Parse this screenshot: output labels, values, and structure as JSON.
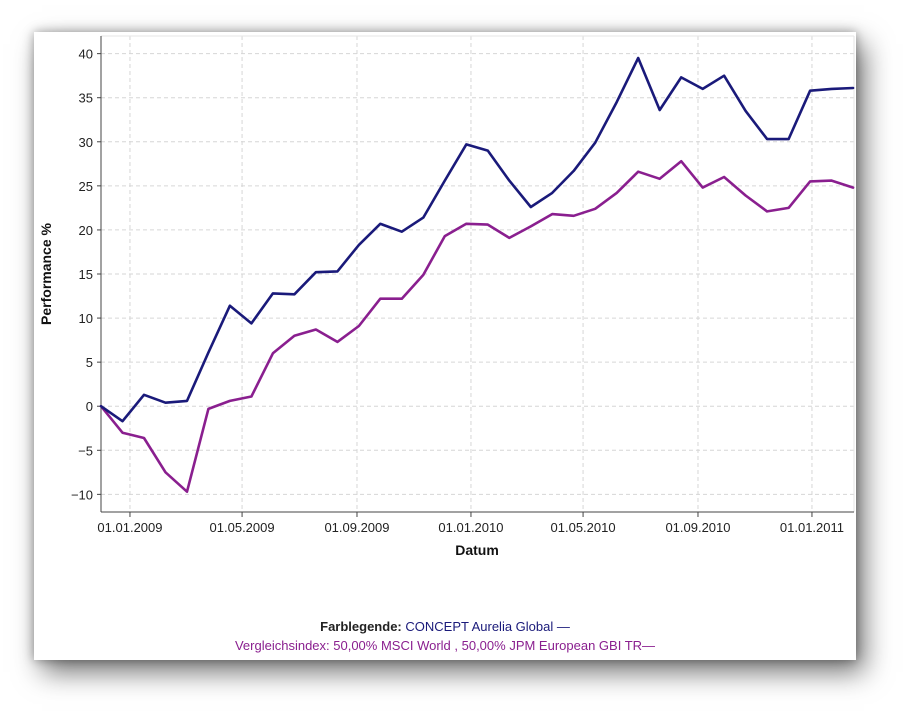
{
  "legend": {
    "title": "Farblegende:",
    "series1_text": "CONCEPT Aurelia Global —",
    "series2_text": "Vergleichsindex: 50,00% MSCI World , 50,00% JPM European GBI TR—"
  },
  "chart_data": {
    "type": "line",
    "xlabel": "Datum",
    "ylabel": "Performance %",
    "ylim": [
      -12,
      42
    ],
    "yticks": [
      -10,
      -5,
      0,
      5,
      10,
      15,
      20,
      25,
      30,
      35,
      40
    ],
    "xlim": [
      "2008-12-01",
      "2011-02-15"
    ],
    "xticks": [
      {
        "date": "2009-01-01",
        "label": "01.01.2009"
      },
      {
        "date": "2009-05-01",
        "label": "01.05.2009"
      },
      {
        "date": "2009-09-01",
        "label": "01.09.2009"
      },
      {
        "date": "2010-01-01",
        "label": "01.01.2010"
      },
      {
        "date": "2010-05-01",
        "label": "01.05.2010"
      },
      {
        "date": "2010-09-01",
        "label": "01.09.2010"
      },
      {
        "date": "2011-01-01",
        "label": "01.01.2011"
      }
    ],
    "grid": true,
    "legend_position": "bottom",
    "x": [
      "2008-12-01",
      "2008-12-24",
      "2009-01-16",
      "2009-02-08",
      "2009-03-03",
      "2009-03-26",
      "2009-04-18",
      "2009-05-11",
      "2009-06-03",
      "2009-06-26",
      "2009-07-19",
      "2009-08-11",
      "2009-09-03",
      "2009-09-26",
      "2009-10-19",
      "2009-11-11",
      "2009-12-04",
      "2009-12-27",
      "2010-01-19",
      "2010-02-11",
      "2010-03-06",
      "2010-03-29",
      "2010-04-21",
      "2010-05-14",
      "2010-06-06",
      "2010-06-29",
      "2010-07-22",
      "2010-08-14",
      "2010-09-06",
      "2010-09-29",
      "2010-10-22",
      "2010-11-14",
      "2010-12-07",
      "2010-12-30",
      "2011-01-22",
      "2011-02-14"
    ],
    "series": [
      {
        "name": "CONCEPT Aurelia Global",
        "color": "#1a1a7a",
        "values": [
          0,
          -1.7,
          1.3,
          0.4,
          0.6,
          6.1,
          11.4,
          9.4,
          12.8,
          12.7,
          15.2,
          15.3,
          18.3,
          20.7,
          19.8,
          21.4,
          25.6,
          29.7,
          29.0,
          25.6,
          22.6,
          24.2,
          26.7,
          29.9,
          34.5,
          39.5,
          33.6,
          37.3,
          36.0,
          37.5,
          33.5,
          30.3,
          30.3,
          35.8,
          36.0,
          36.1
        ],
        "values_note": ""
      },
      {
        "name": "Vergleichsindex: 50,00% MSCI World , 50,00% JPM European GBI TR",
        "color": "#8a1f8f",
        "values": [
          0,
          -3.0,
          -3.6,
          -7.5,
          -9.7,
          -0.3,
          0.6,
          1.1,
          6.0,
          8.0,
          8.7,
          7.3,
          9.1,
          12.2,
          12.2,
          14.9,
          19.3,
          20.7,
          20.6,
          19.1,
          20.4,
          21.8,
          21.6,
          22.4,
          24.2,
          26.6,
          25.8,
          27.8,
          24.8,
          26.0,
          23.9,
          22.1,
          22.5,
          25.5,
          25.6,
          24.8
        ],
        "values_note": ""
      }
    ]
  }
}
